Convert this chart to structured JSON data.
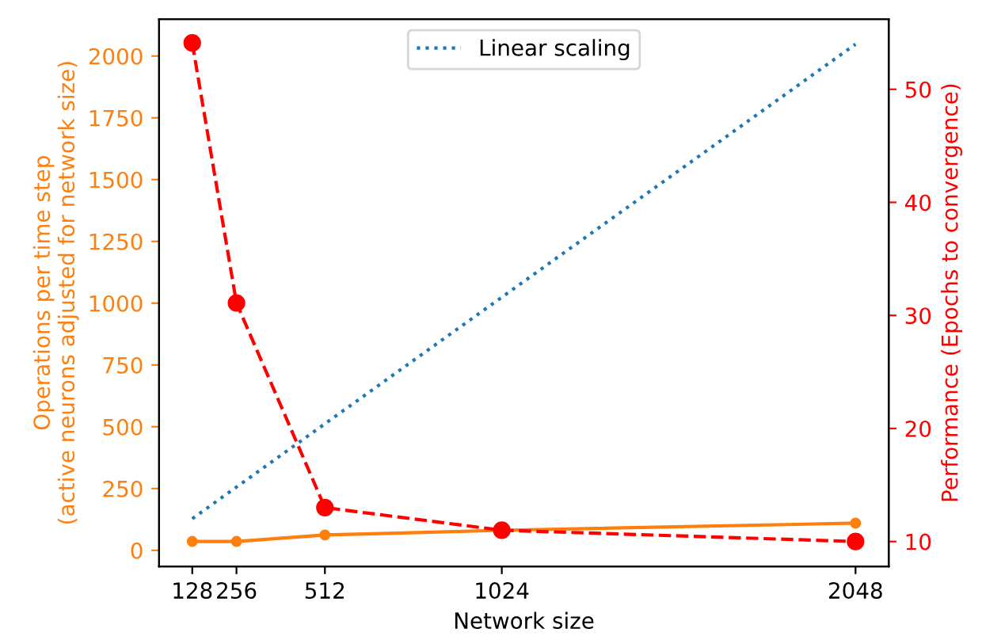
{
  "chart_data": {
    "type": "line",
    "xlabel": "Network size",
    "ylabel": "Operations per time step\n(active neurons adjusted for network size)",
    "y2label": "Performance (Epochs to convergence)",
    "x": [
      128,
      256,
      512,
      1024,
      2048
    ],
    "series": [
      {
        "name": "Linear scaling",
        "color": "#1f77b4",
        "values": [
          128,
          256,
          512,
          1024,
          2048
        ],
        "line_style": "dotted",
        "marker": "none"
      },
      {
        "color": "#ff7f0e",
        "values": [
          36,
          36,
          62,
          81,
          110
        ],
        "line_style": "solid",
        "marker": "circle"
      },
      {
        "color": "#ff0000",
        "values": [
          54.1,
          31.1,
          13.0,
          11.0,
          10.0
        ],
        "line_style": "dashed",
        "marker": "circle",
        "axis": "y2"
      }
    ],
    "xlim": [
      32,
      2144
    ],
    "xticks": [
      128,
      256,
      512,
      1024,
      2048
    ],
    "ylim": [
      -65,
      2149
    ],
    "yticks": [
      0,
      250,
      500,
      750,
      1000,
      1250,
      1500,
      1750,
      2000
    ],
    "y2lim": [
      7.8,
      56.2
    ],
    "y2ticks": [
      10,
      20,
      30,
      40,
      50
    ],
    "legend": "top",
    "grid": false
  }
}
